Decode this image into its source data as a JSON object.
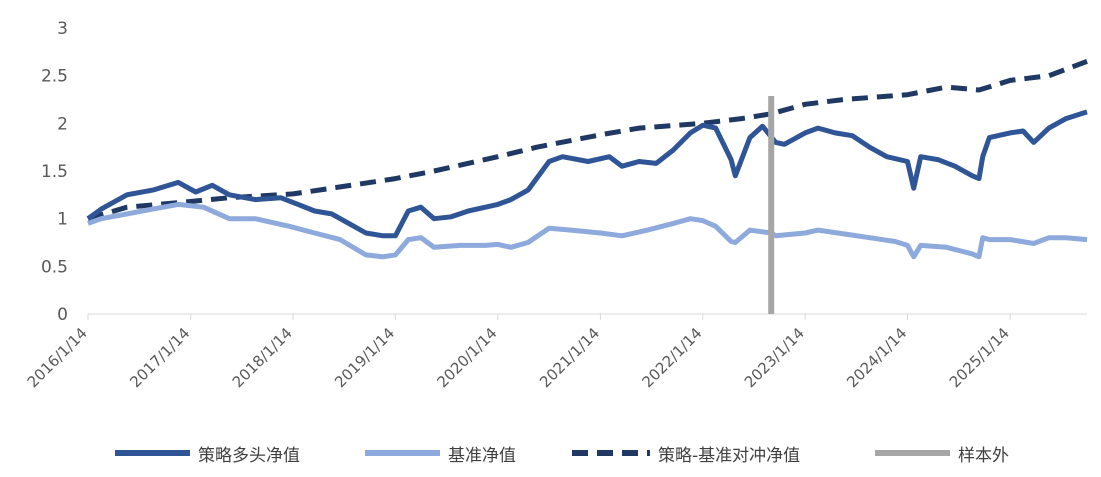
{
  "chart_data": {
    "type": "line",
    "title": "",
    "xlabel": "",
    "ylabel": "",
    "ylim": [
      0,
      3
    ],
    "y_ticks": [
      "0",
      "0.5",
      "1",
      "1.5",
      "2",
      "2.5",
      "3"
    ],
    "x_ticks": [
      "2016/1/14",
      "2017/1/14",
      "2018/1/14",
      "2019/1/14",
      "2020/1/14",
      "2021/1/14",
      "2022/1/14",
      "2023/1/14",
      "2024/1/14",
      "2025/1/14"
    ],
    "x_range": [
      "2016/1/14",
      "2025/10/15"
    ],
    "out_of_sample_start": "2022/9/15",
    "grid": false,
    "legend_position": "bottom",
    "series": [
      {
        "name": "策略多头净值",
        "color": "#2F5597",
        "style": "solid",
        "points": [
          [
            "2016/1/14",
            1.0
          ],
          [
            "2016/3/1",
            1.1
          ],
          [
            "2016/6/1",
            1.25
          ],
          [
            "2016/9/1",
            1.3
          ],
          [
            "2016/12/1",
            1.38
          ],
          [
            "2017/2/1",
            1.28
          ],
          [
            "2017/4/1",
            1.35
          ],
          [
            "2017/6/1",
            1.25
          ],
          [
            "2017/9/1",
            1.2
          ],
          [
            "2017/12/1",
            1.22
          ],
          [
            "2018/2/1",
            1.15
          ],
          [
            "2018/4/1",
            1.08
          ],
          [
            "2018/6/1",
            1.05
          ],
          [
            "2018/8/1",
            0.95
          ],
          [
            "2018/10/1",
            0.85
          ],
          [
            "2018/12/1",
            0.82
          ],
          [
            "2019/1/14",
            0.82
          ],
          [
            "2019/3/1",
            1.08
          ],
          [
            "2019/4/15",
            1.12
          ],
          [
            "2019/6/1",
            1.0
          ],
          [
            "2019/8/1",
            1.02
          ],
          [
            "2019/10/1",
            1.08
          ],
          [
            "2019/12/1",
            1.12
          ],
          [
            "2020/1/14",
            1.15
          ],
          [
            "2020/3/1",
            1.2
          ],
          [
            "2020/5/1",
            1.3
          ],
          [
            "2020/7/15",
            1.6
          ],
          [
            "2020/9/1",
            1.65
          ],
          [
            "2020/12/1",
            1.6
          ],
          [
            "2021/2/15",
            1.65
          ],
          [
            "2021/4/1",
            1.55
          ],
          [
            "2021/6/1",
            1.6
          ],
          [
            "2021/8/1",
            1.58
          ],
          [
            "2021/10/1",
            1.72
          ],
          [
            "2021/12/1",
            1.9
          ],
          [
            "2022/1/14",
            1.98
          ],
          [
            "2022/3/1",
            1.95
          ],
          [
            "2022/4/25",
            1.62
          ],
          [
            "2022/5/10",
            1.45
          ],
          [
            "2022/7/1",
            1.85
          ],
          [
            "2022/8/15",
            1.97
          ],
          [
            "2022/10/1",
            1.8
          ],
          [
            "2022/11/1",
            1.78
          ],
          [
            "2023/1/14",
            1.9
          ],
          [
            "2023/3/1",
            1.95
          ],
          [
            "2023/5/1",
            1.9
          ],
          [
            "2023/7/1",
            1.87
          ],
          [
            "2023/9/1",
            1.75
          ],
          [
            "2023/11/1",
            1.65
          ],
          [
            "2024/1/14",
            1.6
          ],
          [
            "2024/2/5",
            1.32
          ],
          [
            "2024/3/1",
            1.65
          ],
          [
            "2024/5/1",
            1.62
          ],
          [
            "2024/7/1",
            1.55
          ],
          [
            "2024/9/1",
            1.45
          ],
          [
            "2024/9/25",
            1.42
          ],
          [
            "2024/10/8",
            1.65
          ],
          [
            "2024/11/1",
            1.85
          ],
          [
            "2025/1/14",
            1.9
          ],
          [
            "2025/3/1",
            1.92
          ],
          [
            "2025/4/8",
            1.8
          ],
          [
            "2025/6/1",
            1.95
          ],
          [
            "2025/8/1",
            2.05
          ],
          [
            "2025/10/15",
            2.12
          ]
        ]
      },
      {
        "name": "基准净值",
        "color": "#8EA9DB",
        "style": "solid",
        "points": [
          [
            "2016/1/14",
            0.95
          ],
          [
            "2016/3/1",
            1.0
          ],
          [
            "2016/6/1",
            1.05
          ],
          [
            "2016/9/1",
            1.1
          ],
          [
            "2016/12/1",
            1.15
          ],
          [
            "2017/3/1",
            1.12
          ],
          [
            "2017/6/1",
            1.0
          ],
          [
            "2017/9/1",
            1.0
          ],
          [
            "2018/1/1",
            0.92
          ],
          [
            "2018/4/1",
            0.85
          ],
          [
            "2018/7/1",
            0.78
          ],
          [
            "2018/10/1",
            0.62
          ],
          [
            "2018/12/1",
            0.6
          ],
          [
            "2019/1/14",
            0.62
          ],
          [
            "2019/3/1",
            0.78
          ],
          [
            "2019/4/15",
            0.8
          ],
          [
            "2019/6/1",
            0.7
          ],
          [
            "2019/9/1",
            0.72
          ],
          [
            "2019/12/1",
            0.72
          ],
          [
            "2020/1/14",
            0.73
          ],
          [
            "2020/3/1",
            0.7
          ],
          [
            "2020/5/1",
            0.75
          ],
          [
            "2020/7/15",
            0.9
          ],
          [
            "2020/10/1",
            0.88
          ],
          [
            "2021/1/14",
            0.85
          ],
          [
            "2021/4/1",
            0.82
          ],
          [
            "2021/7/1",
            0.88
          ],
          [
            "2021/10/1",
            0.95
          ],
          [
            "2021/12/1",
            1.0
          ],
          [
            "2022/1/14",
            0.98
          ],
          [
            "2022/3/1",
            0.92
          ],
          [
            "2022/4/25",
            0.76
          ],
          [
            "2022/5/10",
            0.75
          ],
          [
            "2022/7/1",
            0.88
          ],
          [
            "2022/9/15",
            0.85
          ],
          [
            "2022/10/1",
            0.82
          ],
          [
            "2023/1/14",
            0.85
          ],
          [
            "2023/3/1",
            0.88
          ],
          [
            "2023/6/1",
            0.84
          ],
          [
            "2023/9/1",
            0.8
          ],
          [
            "2023/12/1",
            0.76
          ],
          [
            "2024/1/14",
            0.72
          ],
          [
            "2024/2/5",
            0.6
          ],
          [
            "2024/3/1",
            0.72
          ],
          [
            "2024/6/1",
            0.7
          ],
          [
            "2024/9/1",
            0.63
          ],
          [
            "2024/9/25",
            0.6
          ],
          [
            "2024/10/8",
            0.8
          ],
          [
            "2024/11/1",
            0.78
          ],
          [
            "2025/1/14",
            0.78
          ],
          [
            "2025/4/8",
            0.74
          ],
          [
            "2025/6/1",
            0.8
          ],
          [
            "2025/8/1",
            0.8
          ],
          [
            "2025/10/15",
            0.78
          ]
        ]
      },
      {
        "name": "策略-基准对冲净值",
        "color": "#1F3864",
        "style": "dashed",
        "points": [
          [
            "2016/1/14",
            1.0
          ],
          [
            "2016/6/1",
            1.12
          ],
          [
            "2017/1/14",
            1.18
          ],
          [
            "2017/6/1",
            1.22
          ],
          [
            "2018/1/14",
            1.26
          ],
          [
            "2018/6/1",
            1.32
          ],
          [
            "2019/1/14",
            1.42
          ],
          [
            "2019/6/1",
            1.5
          ],
          [
            "2020/1/14",
            1.65
          ],
          [
            "2020/6/1",
            1.75
          ],
          [
            "2021/1/14",
            1.88
          ],
          [
            "2021/6/1",
            1.95
          ],
          [
            "2022/1/14",
            2.0
          ],
          [
            "2022/6/1",
            2.05
          ],
          [
            "2022/9/15",
            2.1
          ],
          [
            "2023/1/14",
            2.2
          ],
          [
            "2023/6/1",
            2.25
          ],
          [
            "2024/1/14",
            2.3
          ],
          [
            "2024/6/1",
            2.38
          ],
          [
            "2024/9/25",
            2.35
          ],
          [
            "2025/1/14",
            2.45
          ],
          [
            "2025/6/1",
            2.5
          ],
          [
            "2025/10/15",
            2.65
          ]
        ]
      },
      {
        "name": "样本外",
        "color": "#A6A6A6",
        "style": "vertical-line"
      }
    ]
  },
  "legend": [
    {
      "label": "策略多头净值",
      "color": "#2F5597",
      "style": "solid"
    },
    {
      "label": "基准净值",
      "color": "#8EA9DB",
      "style": "solid"
    },
    {
      "label": "策略-基准对冲净值",
      "color": "#1F3864",
      "style": "dashed"
    },
    {
      "label": "样本外",
      "color": "#A6A6A6",
      "style": "solid"
    }
  ]
}
